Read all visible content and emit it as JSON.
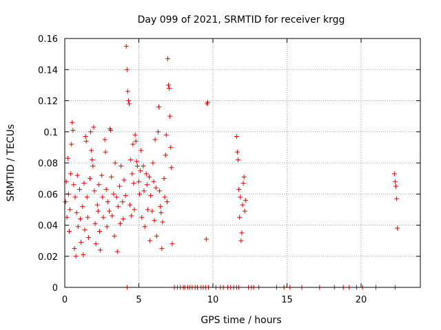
{
  "chart_data": {
    "type": "scatter",
    "title": "Day 099 of 2021, SRMTID for receiver krgg",
    "xlabel": "GPS time / hours",
    "ylabel": "SRMTID / TECUs",
    "xlim": [
      0,
      24
    ],
    "ylim": [
      0,
      0.16
    ],
    "xticks": [
      0,
      5,
      10,
      15,
      20
    ],
    "xtick_labels": [
      "0",
      "5",
      "10",
      "15",
      "20"
    ],
    "yticks": [
      0,
      0.02,
      0.04,
      0.06,
      0.08,
      0.1,
      0.12,
      0.14,
      0.16
    ],
    "ytick_labels": [
      "0",
      "0.02",
      "0.04",
      "0.06",
      "0.08",
      "0.1",
      "0.12",
      "0.14",
      "0.16"
    ],
    "grid": true,
    "marker": "+",
    "color": "#e00000",
    "series": [
      {
        "name": "SRMTID",
        "points": [
          [
            0.05,
            0.055
          ],
          [
            0.1,
            0.068
          ],
          [
            0.15,
            0.045
          ],
          [
            0.2,
            0.083
          ],
          [
            0.25,
            0.06
          ],
          [
            0.3,
            0.036
          ],
          [
            0.35,
            0.05
          ],
          [
            0.4,
            0.073
          ],
          [
            0.45,
            0.092
          ],
          [
            0.5,
            0.106
          ],
          [
            0.55,
            0.101
          ],
          [
            0.6,
            0.066
          ],
          [
            0.65,
            0.025
          ],
          [
            0.7,
            0.058
          ],
          [
            0.75,
            0.02
          ],
          [
            0.8,
            0.048
          ],
          [
            0.85,
            0.072
          ],
          [
            0.9,
            0.039
          ],
          [
            1.0,
            0.063
          ],
          [
            1.05,
            0.044
          ],
          [
            1.1,
            0.029
          ],
          [
            1.2,
            0.052
          ],
          [
            1.25,
            0.021
          ],
          [
            1.3,
            0.067
          ],
          [
            1.35,
            0.037
          ],
          [
            1.4,
            0.097
          ],
          [
            1.45,
            0.094
          ],
          [
            1.5,
            0.058
          ],
          [
            1.55,
            0.045
          ],
          [
            1.6,
            0.032
          ],
          [
            1.7,
            0.07
          ],
          [
            1.75,
            0.1
          ],
          [
            1.8,
            0.088
          ],
          [
            1.85,
            0.082
          ],
          [
            1.9,
            0.078
          ],
          [
            1.95,
            0.103
          ],
          [
            2.0,
            0.062
          ],
          [
            2.05,
            0.041
          ],
          [
            2.1,
            0.028
          ],
          [
            2.2,
            0.053
          ],
          [
            2.25,
            0.049
          ],
          [
            2.3,
            0.066
          ],
          [
            2.35,
            0.036
          ],
          [
            2.4,
            0.024
          ],
          [
            2.5,
            0.072
          ],
          [
            2.55,
            0.058
          ],
          [
            2.6,
            0.045
          ],
          [
            2.7,
            0.095
          ],
          [
            2.75,
            0.087
          ],
          [
            2.8,
            0.063
          ],
          [
            2.85,
            0.039
          ],
          [
            2.9,
            0.055
          ],
          [
            3.0,
            0.049
          ],
          [
            3.05,
            0.102
          ],
          [
            3.1,
            0.101
          ],
          [
            3.15,
            0.071
          ],
          [
            3.2,
            0.046
          ],
          [
            3.3,
            0.06
          ],
          [
            3.35,
            0.033
          ],
          [
            3.4,
            0.08
          ],
          [
            3.5,
            0.058
          ],
          [
            3.55,
            0.023
          ],
          [
            3.6,
            0.052
          ],
          [
            3.7,
            0.065
          ],
          [
            3.75,
            0.041
          ],
          [
            3.8,
            0.078
          ],
          [
            3.9,
            0.055
          ],
          [
            3.95,
            0.044
          ],
          [
            4.0,
            0.069
          ],
          [
            4.1,
            0.059
          ],
          [
            4.15,
            0.155
          ],
          [
            4.2,
            0.14
          ],
          [
            4.25,
            0.126
          ],
          [
            4.3,
            0.12
          ],
          [
            4.35,
            0.118
          ],
          [
            4.4,
            0.053
          ],
          [
            4.45,
            0.082
          ],
          [
            4.5,
            0.046
          ],
          [
            4.55,
            0.073
          ],
          [
            4.6,
            0.092
          ],
          [
            4.65,
            0.067
          ],
          [
            4.7,
            0.05
          ],
          [
            4.75,
            0.098
          ],
          [
            4.8,
            0.094
          ],
          [
            4.85,
            0.081
          ],
          [
            4.9,
            0.078
          ],
          [
            5.0,
            0.068
          ],
          [
            5.05,
            0.06
          ],
          [
            5.1,
            0.075
          ],
          [
            5.15,
            0.088
          ],
          [
            5.2,
            0.045
          ],
          [
            5.3,
            0.078
          ],
          [
            5.35,
            0.062
          ],
          [
            5.4,
            0.039
          ],
          [
            5.5,
            0.073
          ],
          [
            5.55,
            0.066
          ],
          [
            5.6,
            0.05
          ],
          [
            5.7,
            0.071
          ],
          [
            5.75,
            0.03
          ],
          [
            5.8,
            0.059
          ],
          [
            5.9,
            0.049
          ],
          [
            5.95,
            0.08
          ],
          [
            6.0,
            0.068
          ],
          [
            6.05,
            0.043
          ],
          [
            6.1,
            0.095
          ],
          [
            6.15,
            0.064
          ],
          [
            6.2,
            0.033
          ],
          [
            6.3,
            0.1
          ],
          [
            6.35,
            0.116
          ],
          [
            6.4,
            0.062
          ],
          [
            6.45,
            0.052
          ],
          [
            6.5,
            0.048
          ],
          [
            6.55,
            0.025
          ],
          [
            6.6,
            0.042
          ],
          [
            6.7,
            0.07
          ],
          [
            6.75,
            0.058
          ],
          [
            6.8,
            0.085
          ],
          [
            6.85,
            0.098
          ],
          [
            6.9,
            0.055
          ],
          [
            6.95,
            0.147
          ],
          [
            7.0,
            0.13
          ],
          [
            7.05,
            0.128
          ],
          [
            7.1,
            0.11
          ],
          [
            7.15,
            0.09
          ],
          [
            7.2,
            0.077
          ],
          [
            7.25,
            0.028
          ],
          [
            9.55,
            0.031
          ],
          [
            9.6,
            0.118
          ],
          [
            9.65,
            0.119
          ],
          [
            11.6,
            0.097
          ],
          [
            11.65,
            0.087
          ],
          [
            11.7,
            0.082
          ],
          [
            11.75,
            0.063
          ],
          [
            11.8,
            0.045
          ],
          [
            11.85,
            0.058
          ],
          [
            11.9,
            0.03
          ],
          [
            11.95,
            0.035
          ],
          [
            12.0,
            0.053
          ],
          [
            12.05,
            0.067
          ],
          [
            12.1,
            0.071
          ],
          [
            12.15,
            0.049
          ],
          [
            12.2,
            0.056
          ],
          [
            22.25,
            0.073
          ],
          [
            22.3,
            0.068
          ],
          [
            22.35,
            0.065
          ],
          [
            22.4,
            0.057
          ],
          [
            22.45,
            0.038
          ]
        ],
        "zero_hours": [
          4.2,
          7.4,
          7.6,
          7.8,
          8.0,
          8.1,
          8.3,
          8.45,
          8.6,
          8.8,
          8.95,
          9.2,
          9.35,
          9.5,
          9.7,
          10.2,
          10.5,
          10.7,
          11.0,
          11.2,
          11.4,
          11.6,
          11.75,
          12.4,
          12.6,
          12.75,
          13.1,
          14.3,
          14.8,
          15.2,
          16.0,
          17.2,
          18.2,
          18.8,
          19.2,
          19.7,
          20.1,
          21.0,
          22.3
        ]
      }
    ]
  }
}
